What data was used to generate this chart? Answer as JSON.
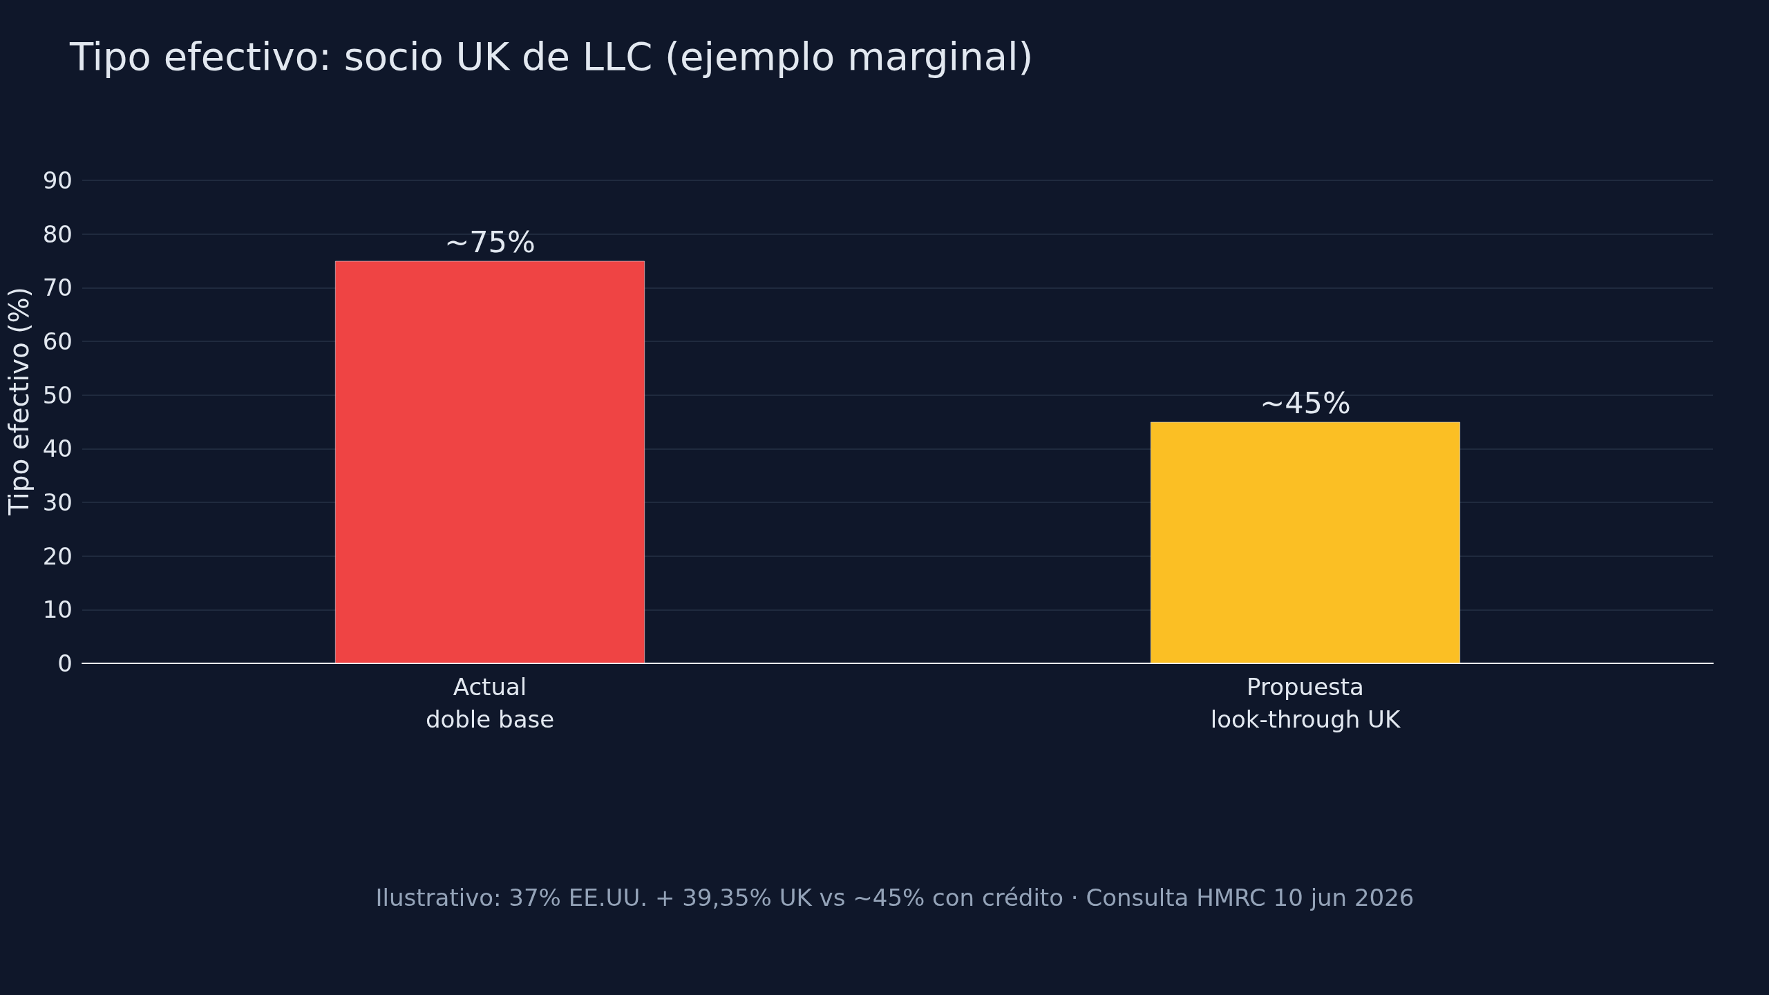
{
  "chart_data": {
    "type": "bar",
    "title": "Tipo efectivo: socio UK de LLC (ejemplo marginal)",
    "ylabel": "Tipo efectivo (%)",
    "categories": [
      "Actual\ndoble base",
      "Propuesta\nlook-through UK"
    ],
    "values": [
      75,
      45
    ],
    "colors": [
      "#ef4444",
      "#fbbf24"
    ],
    "value_labels": [
      "~75%",
      "~45%"
    ],
    "ylim": [
      0,
      90
    ],
    "yticks": [
      0,
      10,
      20,
      30,
      40,
      50,
      60,
      70,
      80,
      90
    ],
    "grid": "y",
    "annotations": [
      "Ilustrativo: 37% EE.UU. + 39,35% UK vs ~45% con crédito · Consulta HMRC 10 jun 2026"
    ]
  }
}
